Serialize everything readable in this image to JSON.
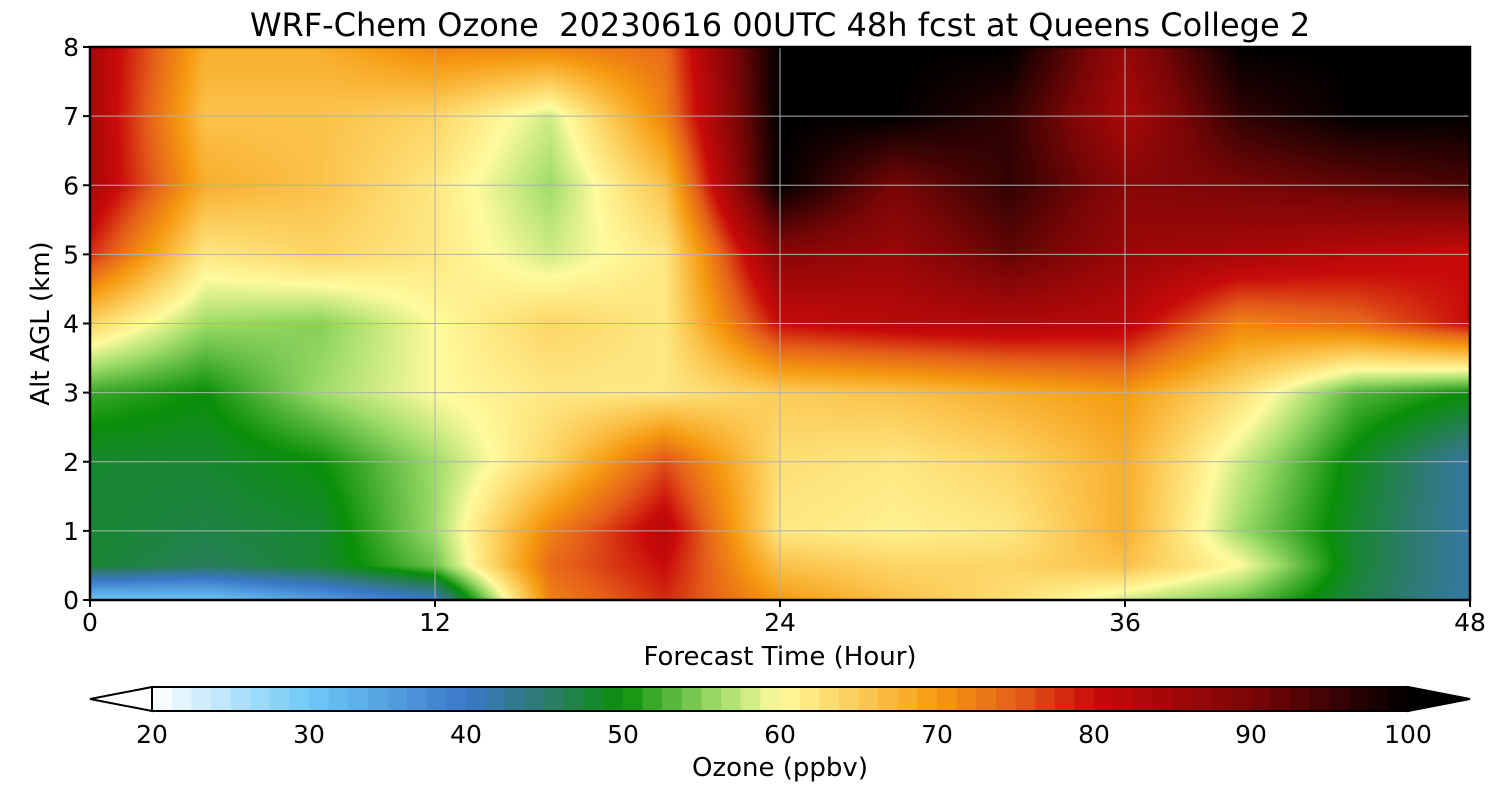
{
  "chart_data": {
    "type": "heatmap",
    "title": "WRF-Chem Ozone  20230616 00UTC 48h fcst at Queens College 2",
    "xlabel": "Forecast Time (Hour)",
    "ylabel": "Alt AGL (km)",
    "xlim": [
      0,
      48
    ],
    "ylim": [
      0,
      8
    ],
    "xticks": [
      0,
      12,
      24,
      36,
      48
    ],
    "yticks": [
      0,
      1,
      2,
      3,
      4,
      5,
      6,
      7,
      8
    ],
    "grid": true,
    "x": [
      0,
      4,
      8,
      12,
      16,
      20,
      24,
      28,
      32,
      36,
      40,
      44,
      48
    ],
    "y": [
      0,
      0.5,
      1,
      2,
      3,
      4,
      5,
      6,
      7,
      8
    ],
    "z": [
      [
        30,
        30,
        35,
        40,
        72,
        78,
        70,
        66,
        63,
        58,
        54,
        47,
        42
      ],
      [
        48,
        46,
        48,
        54,
        74,
        80,
        66,
        64,
        64,
        66,
        60,
        48,
        42
      ],
      [
        48,
        47,
        48,
        56,
        72,
        82,
        62,
        61,
        62,
        68,
        56,
        48,
        42
      ],
      [
        48,
        48,
        50,
        56,
        64,
        76,
        63,
        62,
        64,
        68,
        58,
        49,
        42
      ],
      [
        52,
        50,
        56,
        60,
        62,
        62,
        65,
        66,
        68,
        70,
        63,
        53,
        50
      ],
      [
        64,
        56,
        55,
        60,
        64,
        62,
        80,
        82,
        83,
        82,
        72,
        74,
        80
      ],
      [
        78,
        62,
        64,
        62,
        58,
        62,
        88,
        86,
        92,
        86,
        84,
        82,
        80
      ],
      [
        84,
        68,
        66,
        62,
        56,
        66,
        100,
        90,
        96,
        88,
        90,
        92,
        94
      ],
      [
        84,
        66,
        66,
        64,
        58,
        72,
        100,
        100,
        96,
        84,
        96,
        100,
        100
      ],
      [
        84,
        68,
        68,
        72,
        72,
        74,
        100,
        100,
        100,
        86,
        100,
        100,
        100
      ]
    ],
    "colorbar": {
      "label": "Ozone  (ppbv)",
      "min": 20,
      "max": 100,
      "ticks": [
        "20",
        "30",
        "40",
        "50",
        "60",
        "70",
        "80",
        "90",
        "100"
      ],
      "extend": "both",
      "placement": "bottom",
      "colors": [
        {
          "v": 20,
          "c": "#ffffff"
        },
        {
          "v": 30,
          "c": "#6ec9f7"
        },
        {
          "v": 40,
          "c": "#3a78c8"
        },
        {
          "v": 45,
          "c": "#2d7a6e"
        },
        {
          "v": 50,
          "c": "#0a8f0a"
        },
        {
          "v": 56,
          "c": "#9fdc6a"
        },
        {
          "v": 60,
          "c": "#fffb9e"
        },
        {
          "v": 66,
          "c": "#fbc24a"
        },
        {
          "v": 70,
          "c": "#f59a10"
        },
        {
          "v": 75,
          "c": "#e5601a"
        },
        {
          "v": 80,
          "c": "#c80a0a"
        },
        {
          "v": 90,
          "c": "#7a0606"
        },
        {
          "v": 100,
          "c": "#000000"
        }
      ]
    }
  }
}
